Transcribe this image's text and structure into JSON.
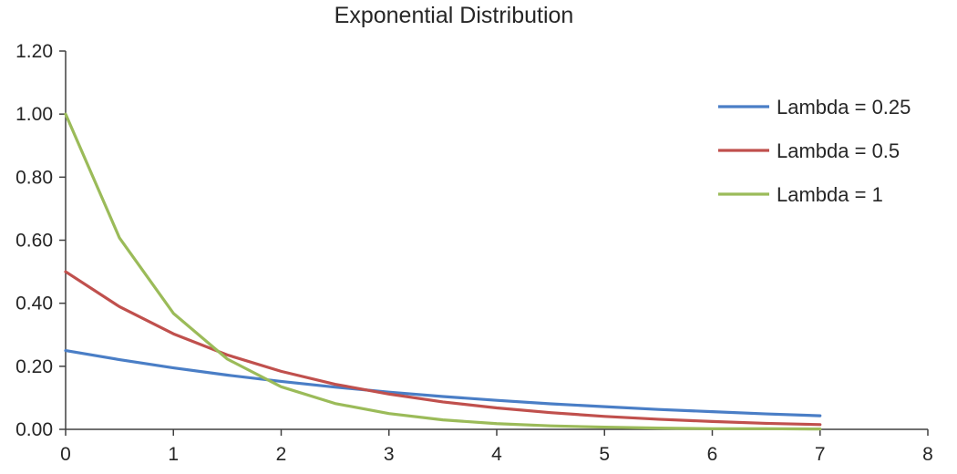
{
  "chart_data": {
    "type": "line",
    "title": "Exponential Distribution",
    "xlabel": "",
    "ylabel": "",
    "xlim": [
      0,
      8
    ],
    "ylim": [
      0,
      1.2
    ],
    "x_ticks": [
      "0",
      "1",
      "2",
      "3",
      "4",
      "5",
      "6",
      "7",
      "8"
    ],
    "y_ticks": [
      "0.00",
      "0.20",
      "0.40",
      "0.60",
      "0.80",
      "1.00",
      "1.20"
    ],
    "grid": false,
    "legend_position": "right",
    "series": [
      {
        "name": "Lambda = 0.25",
        "color": "#4a7ec6",
        "x": [
          0,
          0.5,
          1,
          1.5,
          2,
          2.5,
          3,
          3.5,
          4,
          4.5,
          5,
          5.5,
          6,
          6.5,
          7
        ],
        "y": [
          0.25,
          0.221,
          0.195,
          0.172,
          0.152,
          0.134,
          0.118,
          0.104,
          0.092,
          0.081,
          0.072,
          0.063,
          0.056,
          0.049,
          0.043
        ]
      },
      {
        "name": "Lambda = 0.5",
        "color": "#c0504d",
        "x": [
          0,
          0.5,
          1,
          1.5,
          2,
          2.5,
          3,
          3.5,
          4,
          4.5,
          5,
          5.5,
          6,
          6.5,
          7
        ],
        "y": [
          0.5,
          0.389,
          0.303,
          0.236,
          0.184,
          0.143,
          0.112,
          0.087,
          0.068,
          0.053,
          0.041,
          0.032,
          0.025,
          0.019,
          0.015
        ]
      },
      {
        "name": "Lambda = 1",
        "color": "#9bbb59",
        "x": [
          0,
          0.5,
          1,
          1.5,
          2,
          2.5,
          3,
          3.5,
          4,
          4.5,
          5,
          5.5,
          6,
          6.5,
          7
        ],
        "y": [
          1.0,
          0.607,
          0.368,
          0.223,
          0.135,
          0.082,
          0.05,
          0.03,
          0.018,
          0.011,
          0.007,
          0.004,
          0.002,
          0.002,
          0.001
        ]
      }
    ]
  }
}
